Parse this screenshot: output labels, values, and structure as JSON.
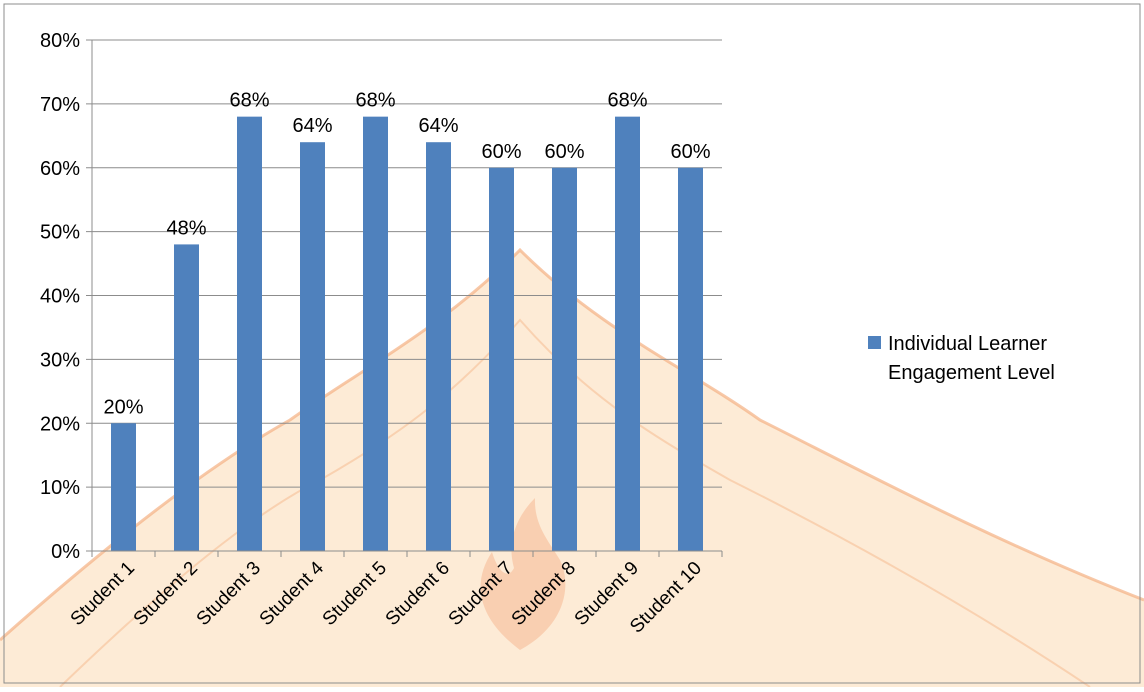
{
  "chart_data": {
    "type": "bar",
    "categories": [
      "Student 1",
      "Student 2",
      "Student 3",
      "Student 4",
      "Student 5",
      "Student 6",
      "Student 7",
      "Student 8",
      "Student 9",
      "Student 10"
    ],
    "series": [
      {
        "name": "Individual Learner Engagement Level",
        "values": [
          20,
          48,
          68,
          64,
          68,
          64,
          60,
          60,
          68,
          60
        ],
        "data_labels": [
          "20%",
          "48%",
          "68%",
          "64%",
          "68%",
          "64%",
          "60%",
          "60%",
          "68%",
          "60%"
        ],
        "color": "#4f81bd"
      }
    ],
    "ylim": [
      0,
      80
    ],
    "yticks": [
      0,
      10,
      20,
      30,
      40,
      50,
      60,
      70,
      80
    ],
    "ytick_labels": [
      "0%",
      "10%",
      "20%",
      "30%",
      "40%",
      "50%",
      "60%",
      "70%",
      "80%"
    ],
    "grid": true,
    "legend": {
      "position": "right",
      "lines": [
        "Individual Learner",
        "Engagement Level"
      ]
    },
    "watermark_colors": {
      "fill": "#fdebd6",
      "stroke": "#f4b183",
      "text": "#e9e4e4",
      "flame": "#f8c8a8"
    }
  }
}
